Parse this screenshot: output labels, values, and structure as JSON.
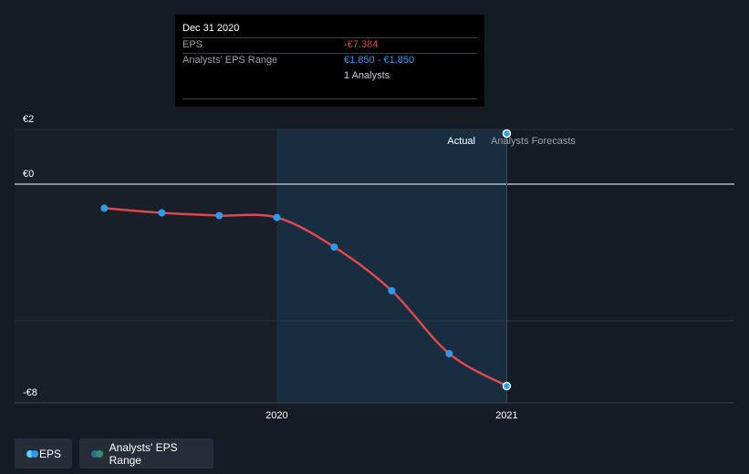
{
  "tooltip": {
    "date": "Dec 31 2020",
    "eps_label": "EPS",
    "eps_value": "-€7.384",
    "range_label": "Analysts' EPS Range",
    "range_value": "€1.850 - €1.850",
    "analysts": "1 Analysts"
  },
  "labels": {
    "actual": "Actual",
    "forecast": "Analysts Forecasts"
  },
  "legend": {
    "eps": "EPS",
    "range": "Analysts' EPS Range"
  },
  "colors": {
    "background": "#151b24",
    "eps_line": "#e0474c",
    "eps_point": "#2b9bf0",
    "forecast_point": "#2b9bf0",
    "highlight": "#1a3a52",
    "legend_eps_a": "#5fd3f6",
    "legend_eps_b": "#2b9bf0",
    "legend_range_a": "#2e6f8f",
    "legend_range_b": "#3a8a7a",
    "tt_eps_value": "#e0474c",
    "tt_range_value": "#2b9bf0"
  },
  "chart_data": {
    "type": "line",
    "ylim": [
      -8,
      2
    ],
    "y_ticks": [
      {
        "value": 2,
        "label": "€2"
      },
      {
        "value": 0,
        "label": "€0"
      },
      {
        "value": -8,
        "label": "-€8"
      }
    ],
    "x_ticks": [
      {
        "value": 2020.0,
        "label": "2020"
      },
      {
        "value": 2021.0,
        "label": "2021"
      }
    ],
    "xlim": [
      2018.86,
      2021.99
    ],
    "highlight_range": [
      2020.0,
      2021.0
    ],
    "series": [
      {
        "name": "EPS",
        "x": [
          2019.25,
          2019.5,
          2019.75,
          2020.0,
          2020.25,
          2020.5,
          2020.75,
          2021.0
        ],
        "y": [
          -0.88,
          -1.05,
          -1.15,
          -1.22,
          -2.3,
          -3.9,
          -6.2,
          -7.384
        ]
      },
      {
        "name": "Analysts' EPS Range",
        "x": [
          2021.0
        ],
        "y": [
          1.85
        ]
      }
    ]
  }
}
